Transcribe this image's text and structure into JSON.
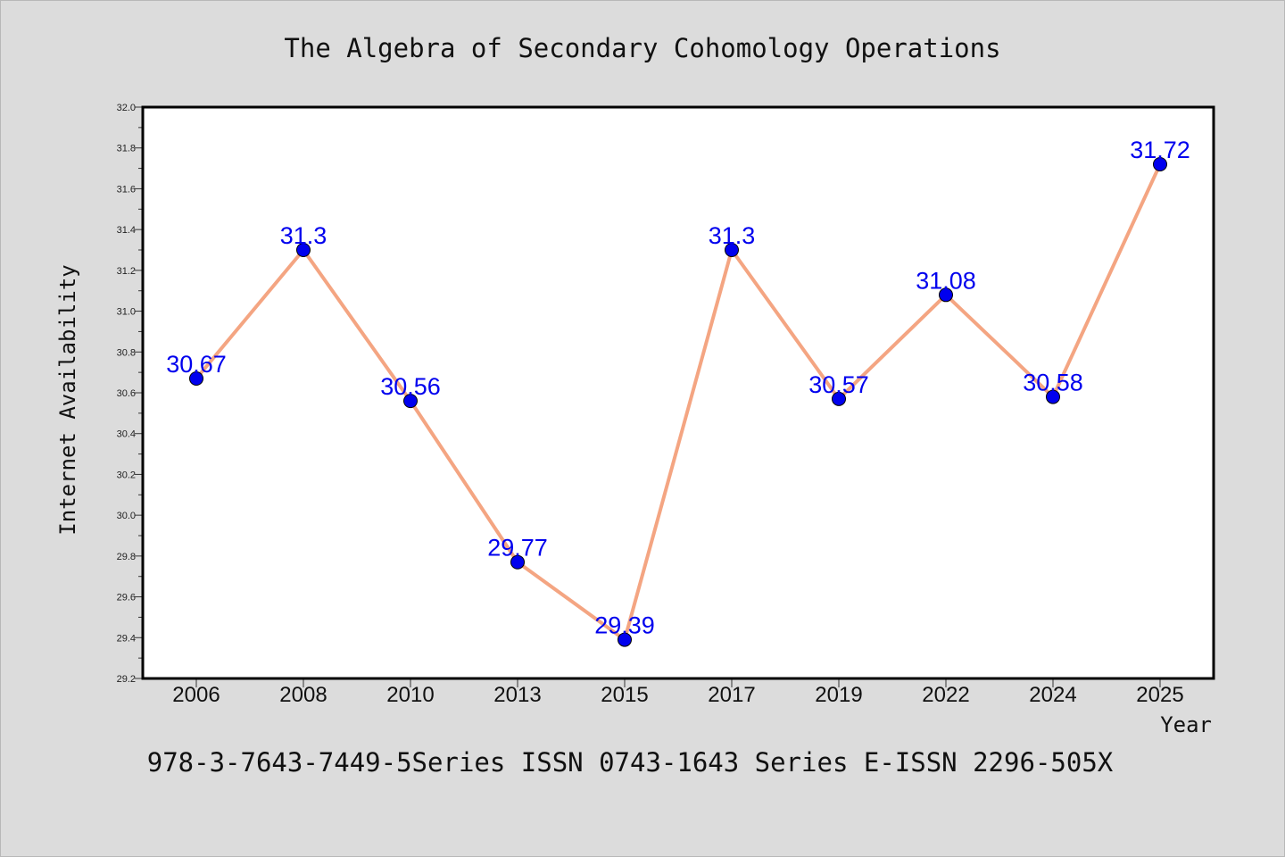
{
  "chart_data": {
    "type": "line",
    "title": "The Algebra of Secondary Cohomology Operations",
    "xlabel": "Year",
    "ylabel": "Internet Availability",
    "categories": [
      "2006",
      "2008",
      "2010",
      "2013",
      "2015",
      "2017",
      "2019",
      "2022",
      "2024",
      "2025"
    ],
    "series": [
      {
        "values": [
          30.67,
          31.3,
          30.56,
          29.77,
          29.39,
          31.3,
          30.57,
          31.08,
          30.58,
          31.72
        ],
        "data_labels": [
          "30.67",
          "31.3",
          "30.56",
          "29.77",
          "29.39",
          "31.3",
          "30.57",
          "31.08",
          "30.58",
          "31.72"
        ]
      }
    ],
    "ylim": [
      29.2,
      32.0
    ],
    "yticks": [
      "29.2",
      "29.4",
      "29.6",
      "29.8",
      "30.0",
      "30.2",
      "30.4",
      "30.6",
      "30.8",
      "31.0",
      "31.2",
      "31.4",
      "31.6",
      "31.8",
      "32.0"
    ],
    "grid": false,
    "line_color": "#f4a582",
    "marker_color": "#0000ee",
    "label_color": "#0000ee"
  },
  "footer": "978-3-7643-7449-5Series ISSN 0743-1643 Series E-ISSN 2296-505X"
}
